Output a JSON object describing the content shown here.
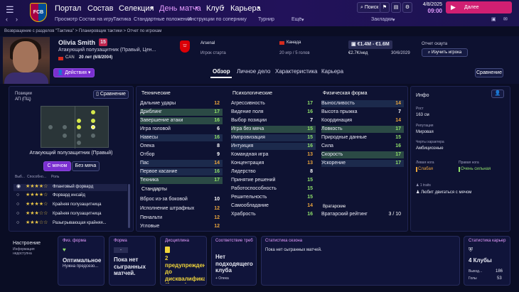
{
  "topbar": {
    "club": "FCB",
    "menus": [
      "Портал",
      "Состав",
      "Селекция",
      "День матча",
      "Клуб",
      "Карьера"
    ],
    "active_menu": "День матча",
    "submenus": [
      "Просмотр",
      "Состав на игру",
      "Тактика",
      "Стандартные положения",
      "Инструкции по сопернику",
      "Турнир",
      "Ещё"
    ],
    "search": "Поиск",
    "bookmarks": "Закладки",
    "date": "4/8/2025",
    "time": "09:00",
    "next": "Далее"
  },
  "breadcrumb": "Возвращение с разделов \"Тактика\" > Планировщик тактики > Отчет по игрокам",
  "player": {
    "name": "Olivia Smith",
    "number": "15",
    "position": "Атакующий полузащитник (Правый, Цен...",
    "nation": "CAN",
    "age": "20 лет (6/8/2004)",
    "actions": "Действия",
    "club": "Arsenal",
    "club_role": "Игрок старта",
    "country": "Канада",
    "caps": "20 игр / 5 голов",
    "value": "€1.4M - €1.6M",
    "wage": "€2.7K/нед",
    "contract": "30/6/2029",
    "scout_report": "Отчет скаута",
    "scout_button": "Изучить игрока"
  },
  "tabs": [
    "Обзор",
    "Личное дело",
    "Характеристика",
    "Карьера"
  ],
  "active_tab": "Обзор",
  "compare": "Сравнение",
  "positions": {
    "title": "Позиции",
    "code": "АП (ПЦ)",
    "compare": "Сравнение",
    "role_name": "Атакующий полузащитник (Правый)",
    "with_ball": "С мячом",
    "without_ball": "Без мяча",
    "col1": "Выб...",
    "col2": "Способно...",
    "col3": "Роль",
    "roles": [
      {
        "stars": "★★★★☆",
        "name": "Фланговый форвард"
      },
      {
        "stars": "★★★★☆",
        "name": "Форвард инсайд"
      },
      {
        "stars": "★★★★☆",
        "name": "Крайняя полузащитница"
      },
      {
        "stars": "★★★☆☆",
        "name": "Крайняя полузащитница"
      },
      {
        "stars": "★★★☆☆",
        "name": "Разыгрывающая крайняя..."
      }
    ]
  },
  "technical": {
    "title": "Технические",
    "rows": [
      {
        "name": "Дальние удары",
        "val": "12"
      },
      {
        "name": "Дриблинг",
        "val": "17"
      },
      {
        "name": "Завершение атаки",
        "val": "16"
      },
      {
        "name": "Игра головой",
        "val": "6"
      },
      {
        "name": "Навесы",
        "val": "16"
      },
      {
        "name": "Опека",
        "val": "8"
      },
      {
        "name": "Отбор",
        "val": "9"
      },
      {
        "name": "Пас",
        "val": "14"
      },
      {
        "name": "Первое касание",
        "val": "16"
      },
      {
        "name": "Техника",
        "val": "17"
      }
    ]
  },
  "setpieces": {
    "title": "Стандарты",
    "rows": [
      {
        "name": "Вброс из-за боковой",
        "val": "10"
      },
      {
        "name": "Исполнение штрафных",
        "val": "12"
      },
      {
        "name": "Пенальти",
        "val": "12"
      },
      {
        "name": "Угловые",
        "val": "12"
      }
    ]
  },
  "mental": {
    "title": "Психологические",
    "rows": [
      {
        "name": "Агрессивность",
        "val": "17"
      },
      {
        "name": "Видение поля",
        "val": "16"
      },
      {
        "name": "Выбор позиции",
        "val": "7"
      },
      {
        "name": "Игра без мяча",
        "val": "15"
      },
      {
        "name": "Импровизация",
        "val": "15"
      },
      {
        "name": "Интуиция",
        "val": "16"
      },
      {
        "name": "Командная игра",
        "val": "13"
      },
      {
        "name": "Концентрация",
        "val": "13"
      },
      {
        "name": "Лидерство",
        "val": "8"
      },
      {
        "name": "Принятие решений",
        "val": "15"
      },
      {
        "name": "Работоспособность",
        "val": "15"
      },
      {
        "name": "Решительность",
        "val": "15"
      },
      {
        "name": "Самообладание",
        "val": "14"
      },
      {
        "name": "Храбрость",
        "val": "16"
      }
    ]
  },
  "physical": {
    "title": "Физическая форма",
    "rows": [
      {
        "name": "Выносливость",
        "val": "14"
      },
      {
        "name": "Высота прыжка",
        "val": "7"
      },
      {
        "name": "Координация",
        "val": "14"
      },
      {
        "name": "Ловкость",
        "val": "17"
      },
      {
        "name": "Природные данные",
        "val": "15"
      },
      {
        "name": "Сила",
        "val": "16"
      },
      {
        "name": "Скорость",
        "val": "17"
      },
      {
        "name": "Ускорение",
        "val": "17"
      }
    ]
  },
  "goalkeeping": {
    "title": "Вратарские",
    "rating_label": "Вратарский рейтинг",
    "rating": "3 / 10"
  },
  "info": {
    "title": "Инфо",
    "height_label": "Рост",
    "height": "163 см",
    "rep_label": "Репутация",
    "rep": "Мировая",
    "traits_label": "Черты характера",
    "traits": "Амбициозные",
    "left_foot_label": "Левая нога",
    "left_foot": "Слабая",
    "right_foot_label": "Правая нога",
    "right_foot": "Очень сильная",
    "traits_count": "1 traits",
    "trait1": "Любит двигаться с мячом"
  },
  "bottom": {
    "mood_title": "Настроение",
    "mood_text": "Информация недоступна",
    "fitness_title": "Физ. форма",
    "fitness_value": "Оптимальное",
    "fitness_sub": "Нужна предсезо...",
    "form_title": "Форма",
    "form_badge": "-",
    "form_value": "Пока нет сыгранных матчей.",
    "discipline_title": "Дисциплина",
    "discipline_value": "2 предупреждения до дисквалификации (1 матч)",
    "match_title": "Соответствие треб",
    "match_value": "Нет подходящего клуба",
    "match_sub": "+ Опека",
    "season_title": "Статистика сезона",
    "season_value": "Пока нет сыгранных матчей.",
    "career_title": "Статистика карьер",
    "career_clubs": "4 Клубы",
    "career_apps_label": "Выход...",
    "career_apps": "186",
    "career_goals_label": "Голы",
    "career_goals": "53"
  }
}
